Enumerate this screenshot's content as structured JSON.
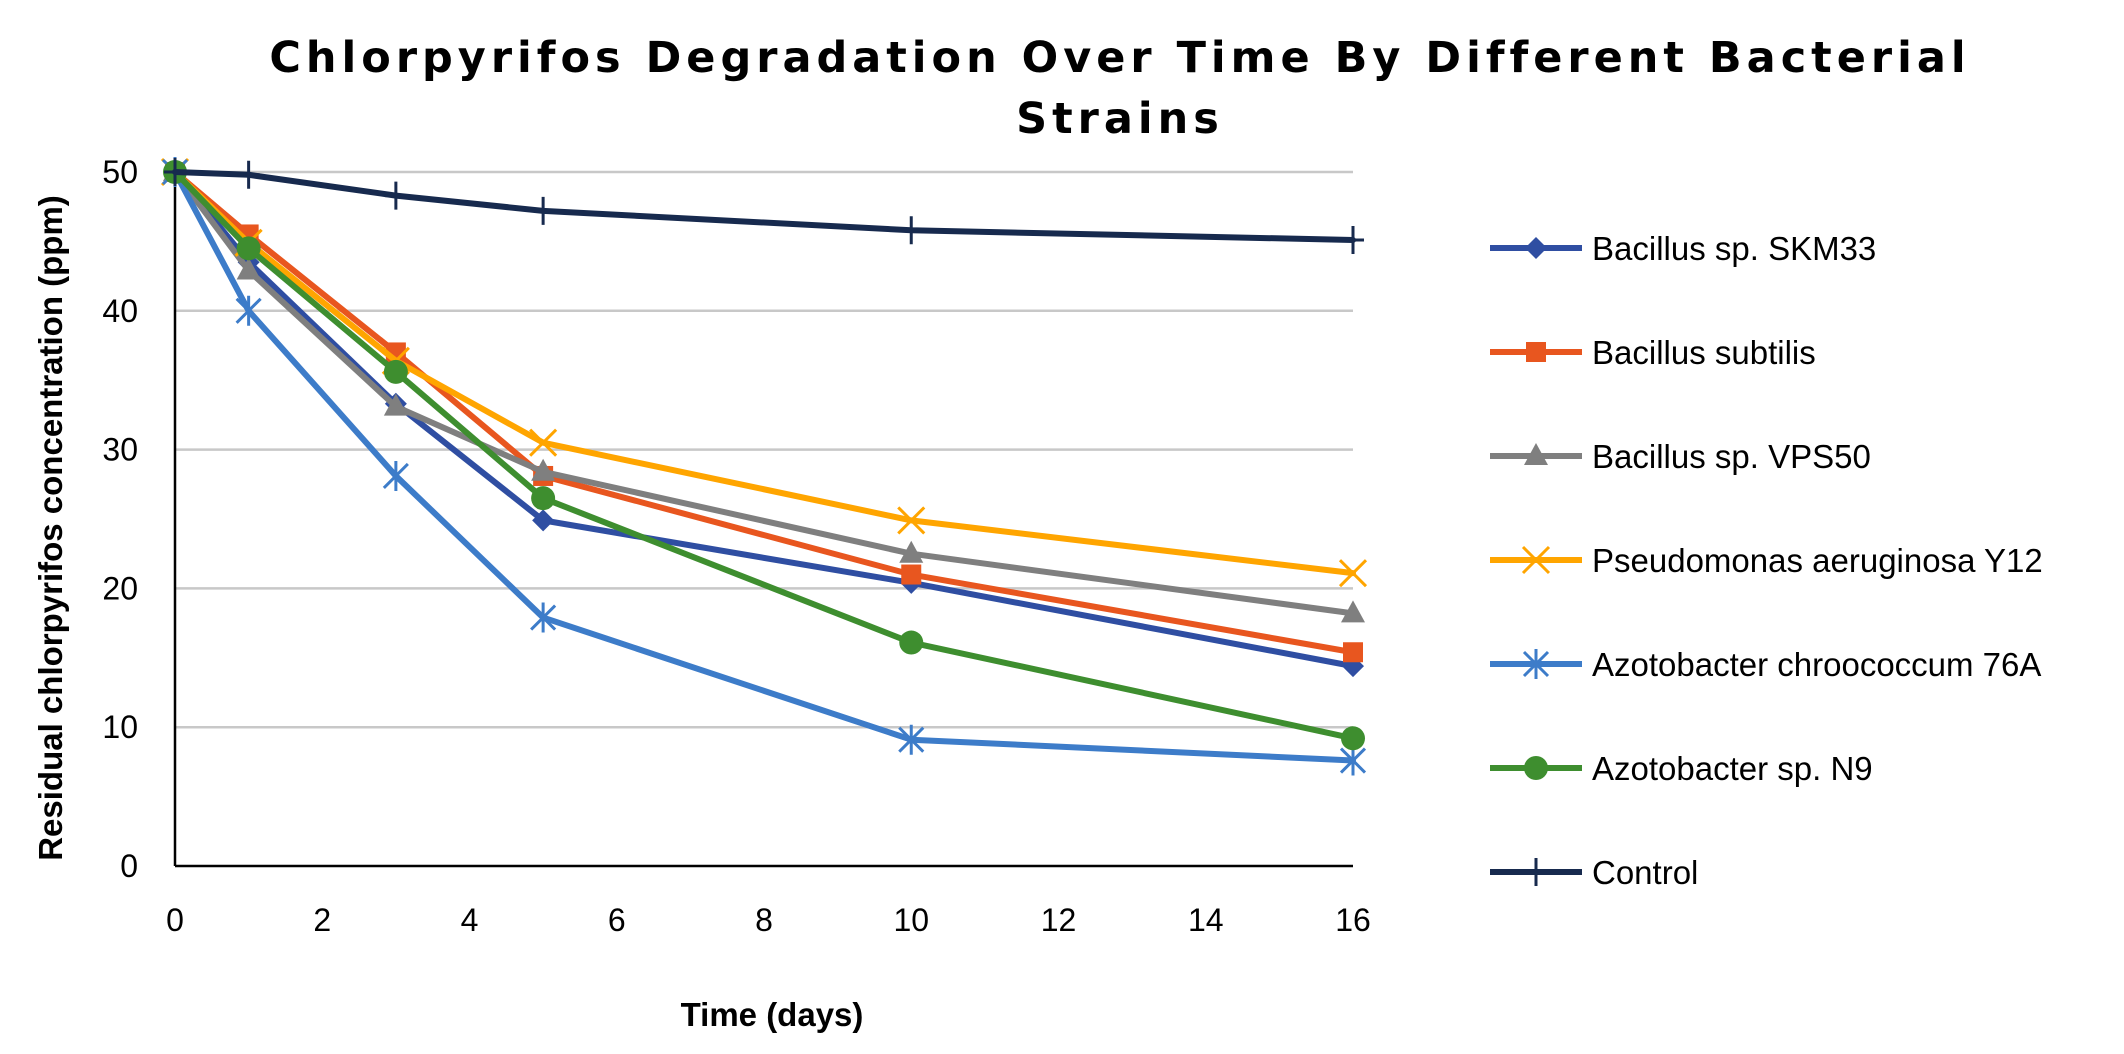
{
  "chart_data": {
    "type": "line",
    "title": "Chlorpyrifos Degradation Over Time By Different Bacterial Strains",
    "xlabel": "Time (days)",
    "ylabel": "Residual chlorpyrifos  concentration (ppm)",
    "xlim": [
      0,
      16
    ],
    "ylim": [
      0,
      50
    ],
    "xticks": [
      "0",
      "2",
      "4",
      "6",
      "8",
      "10",
      "12",
      "14",
      "16"
    ],
    "yticks": [
      "0",
      "10",
      "20",
      "30",
      "40",
      "50"
    ],
    "grid": "horizontal",
    "legend_position": "right",
    "x": [
      0,
      1,
      3,
      5,
      10,
      16
    ],
    "series": [
      {
        "name": "Bacillus sp. SKM33",
        "color": "#2F4EA2",
        "marker": "diamond",
        "values": [
          50,
          43.5,
          33.3,
          24.9,
          20.4,
          14.4
        ]
      },
      {
        "name": "Bacillus subtilis",
        "color": "#E8561F",
        "marker": "square",
        "values": [
          50,
          45.5,
          37,
          28.1,
          21,
          15.4
        ]
      },
      {
        "name": "Bacillus sp. VPS50",
        "color": "#7F7F7F",
        "marker": "triangle",
        "values": [
          50,
          42.9,
          33.1,
          28.4,
          22.5,
          18.2
        ]
      },
      {
        "name": "Pseudomonas aeruginosa Y12",
        "color": "#FFA500",
        "marker": "x",
        "values": [
          50,
          44.9,
          36.4,
          30.5,
          24.9,
          21.1
        ]
      },
      {
        "name": "Azotobacter chroococcum 76A",
        "color": "#3D7CC9",
        "marker": "star",
        "values": [
          50,
          40,
          28.1,
          17.9,
          9.1,
          7.6
        ]
      },
      {
        "name": "Azotobacter sp. N9",
        "color": "#3E8E2F",
        "marker": "circle",
        "values": [
          50,
          44.5,
          35.6,
          26.5,
          16.1,
          9.2
        ]
      },
      {
        "name": "Control",
        "color": "#172A4E",
        "marker": "plus",
        "values": [
          50,
          49.8,
          48.3,
          47.2,
          45.8,
          45.1
        ]
      }
    ]
  }
}
